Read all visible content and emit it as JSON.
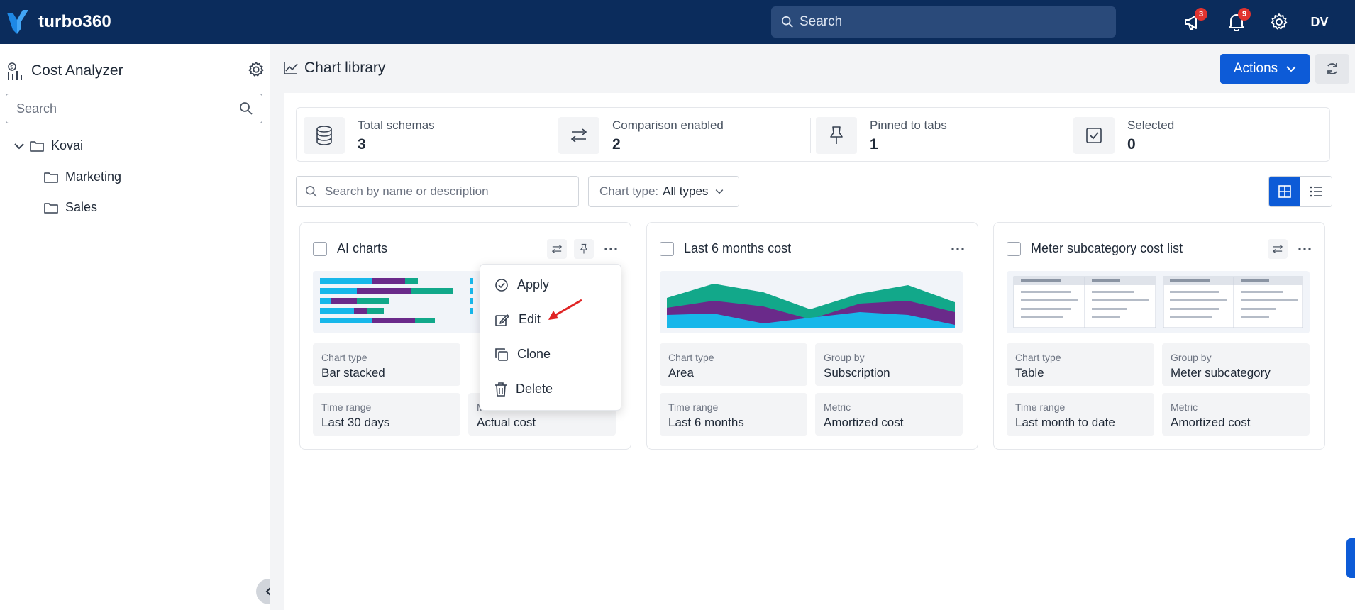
{
  "app": {
    "brand": "turbo360",
    "search_placeholder": "Search",
    "announcements_count": "3",
    "notifications_count": "9",
    "user_initials": "DV"
  },
  "sidebar": {
    "title": "Cost Analyzer",
    "search_placeholder": "Search",
    "tree": [
      {
        "label": "Kovai"
      },
      {
        "label": "Marketing"
      },
      {
        "label": "Sales"
      }
    ]
  },
  "page": {
    "title": "Chart library",
    "actions_label": "Actions"
  },
  "stats": [
    {
      "label": "Total schemas",
      "value": "3"
    },
    {
      "label": "Comparison enabled",
      "value": "2"
    },
    {
      "label": "Pinned to tabs",
      "value": "1"
    },
    {
      "label": "Selected",
      "value": "0"
    }
  ],
  "filters": {
    "search_placeholder": "Search by name or description",
    "chart_type_label": "Chart type:",
    "chart_type_value": "All types"
  },
  "cards": [
    {
      "title": "AI charts",
      "meta": [
        {
          "label": "Chart type",
          "value": "Bar stacked"
        },
        {
          "label": "Time range",
          "value": "Last 30 days"
        },
        {
          "label": "Metric",
          "value": "Actual cost"
        }
      ]
    },
    {
      "title": "Last 6 months cost",
      "meta": [
        {
          "label": "Chart type",
          "value": "Area"
        },
        {
          "label": "Group by",
          "value": "Subscription"
        },
        {
          "label": "Time range",
          "value": "Last 6 months"
        },
        {
          "label": "Metric",
          "value": "Amortized cost"
        }
      ]
    },
    {
      "title": "Meter subcategory cost list",
      "meta": [
        {
          "label": "Chart type",
          "value": "Table"
        },
        {
          "label": "Group by",
          "value": "Meter subcategory"
        },
        {
          "label": "Time range",
          "value": "Last month to date"
        },
        {
          "label": "Metric",
          "value": "Amortized cost"
        }
      ]
    }
  ],
  "context_menu": {
    "items": [
      {
        "label": "Apply"
      },
      {
        "label": "Edit"
      },
      {
        "label": "Clone"
      },
      {
        "label": "Delete"
      }
    ]
  },
  "colors": {
    "topbar": "#0b2c5c",
    "accent": "#0d5bd7",
    "chart_cyan": "#17b7ea",
    "chart_purple": "#6a2a8a",
    "chart_teal": "#12a88a",
    "badge": "#e0332f",
    "annotation_arrow": "#e02424"
  }
}
